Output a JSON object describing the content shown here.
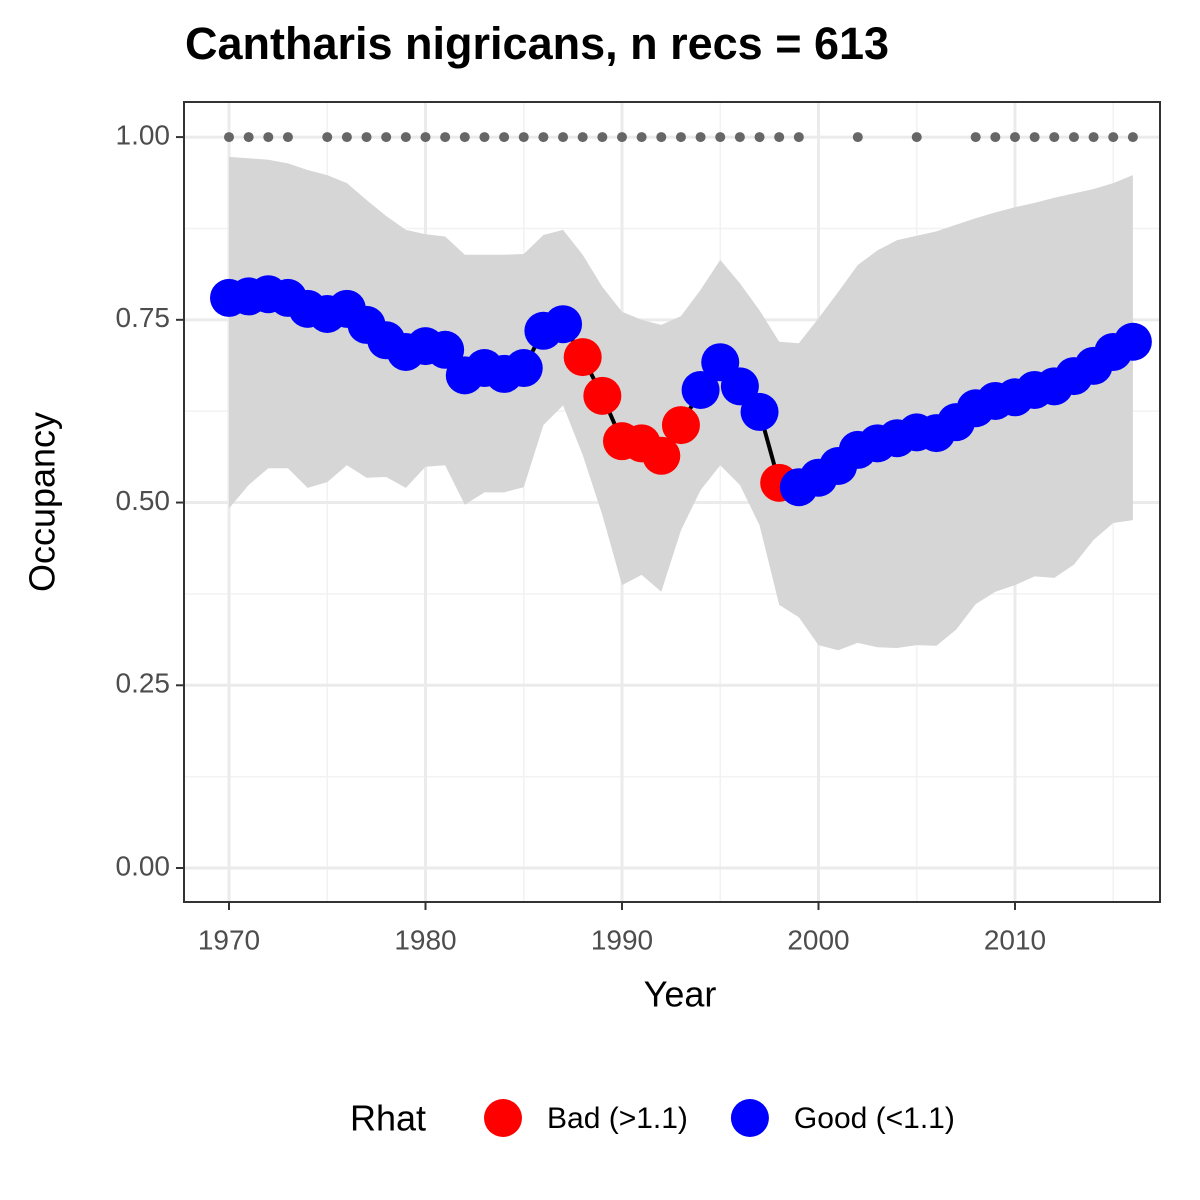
{
  "chart_data": {
    "type": "line",
    "title": "Cantharis nigricans, n recs = 613",
    "xlabel": "Year",
    "ylabel": "Occupancy",
    "legend_title": "Rhat",
    "groups": [
      {
        "name": "Bad (>1.1)",
        "color": "#ff0000"
      },
      {
        "name": "Good (<1.1)",
        "color": "#0000ff"
      }
    ],
    "x": [
      1970,
      1971,
      1972,
      1973,
      1974,
      1975,
      1976,
      1977,
      1978,
      1979,
      1980,
      1981,
      1982,
      1983,
      1984,
      1985,
      1986,
      1987,
      1988,
      1989,
      1990,
      1991,
      1992,
      1993,
      1994,
      1995,
      1996,
      1997,
      1998,
      1999,
      2000,
      2001,
      2002,
      2003,
      2004,
      2005,
      2006,
      2007,
      2008,
      2009,
      2010,
      2011,
      2012,
      2013,
      2014,
      2015,
      2016
    ],
    "values": [
      0.78,
      0.782,
      0.785,
      0.78,
      0.765,
      0.758,
      0.765,
      0.743,
      0.722,
      0.706,
      0.714,
      0.709,
      0.674,
      0.684,
      0.676,
      0.684,
      0.735,
      0.744,
      0.699,
      0.646,
      0.584,
      0.581,
      0.564,
      0.606,
      0.654,
      0.692,
      0.659,
      0.624,
      0.527,
      0.521,
      0.534,
      0.55,
      0.572,
      0.581,
      0.588,
      0.596,
      0.595,
      0.61,
      0.629,
      0.639,
      0.644,
      0.654,
      0.659,
      0.673,
      0.687,
      0.706,
      0.72
    ],
    "group": [
      1,
      1,
      1,
      1,
      1,
      1,
      1,
      1,
      1,
      1,
      1,
      1,
      1,
      1,
      1,
      1,
      1,
      1,
      0,
      0,
      0,
      0,
      0,
      0,
      1,
      1,
      1,
      1,
      0,
      1,
      1,
      1,
      1,
      1,
      1,
      1,
      1,
      1,
      1,
      1,
      1,
      1,
      1,
      1,
      1,
      1,
      1
    ],
    "upper": [
      0.973,
      0.971,
      0.969,
      0.964,
      0.955,
      0.948,
      0.937,
      0.914,
      0.892,
      0.873,
      0.867,
      0.864,
      0.839,
      0.839,
      0.839,
      0.84,
      0.866,
      0.873,
      0.839,
      0.795,
      0.761,
      0.75,
      0.743,
      0.755,
      0.791,
      0.832,
      0.8,
      0.763,
      0.72,
      0.718,
      0.752,
      0.788,
      0.825,
      0.845,
      0.859,
      0.865,
      0.871,
      0.88,
      0.889,
      0.897,
      0.904,
      0.91,
      0.917,
      0.923,
      0.929,
      0.937,
      0.948
    ],
    "lower": [
      0.492,
      0.524,
      0.547,
      0.547,
      0.52,
      0.528,
      0.551,
      0.534,
      0.535,
      0.52,
      0.549,
      0.551,
      0.497,
      0.514,
      0.514,
      0.521,
      0.606,
      0.633,
      0.565,
      0.483,
      0.387,
      0.401,
      0.378,
      0.462,
      0.517,
      0.551,
      0.524,
      0.469,
      0.36,
      0.343,
      0.305,
      0.298,
      0.308,
      0.302,
      0.301,
      0.305,
      0.304,
      0.326,
      0.361,
      0.378,
      0.387,
      0.399,
      0.397,
      0.415,
      0.449,
      0.472,
      0.476
    ],
    "records": {
      "x": [
        1970,
        1971,
        1972,
        1973,
        1975,
        1976,
        1977,
        1978,
        1979,
        1980,
        1981,
        1982,
        1983,
        1984,
        1985,
        1986,
        1987,
        1988,
        1989,
        1990,
        1991,
        1992,
        1993,
        1994,
        1995,
        1996,
        1997,
        1998,
        1999,
        2002,
        2005,
        2008,
        2009,
        2010,
        2011,
        2012,
        2013,
        2014,
        2015,
        2016
      ],
      "values": [
        1,
        1,
        1,
        1,
        1,
        1,
        1,
        1,
        1,
        1,
        1,
        1,
        1,
        1,
        1,
        1,
        1,
        1,
        1,
        1,
        1,
        1,
        1,
        1,
        1,
        1,
        1,
        1,
        1,
        1,
        1,
        1,
        1,
        1,
        1,
        1,
        1,
        1,
        1,
        1
      ],
      "color": "#666666"
    },
    "band_color": "#d6d6d6",
    "line_color": "#000000",
    "xlim": [
      1967.71,
      2017.38
    ],
    "xticks": [
      1970,
      1980,
      1990,
      2000,
      2010
    ],
    "ylim": [
      -0.0465,
      1.048
    ],
    "yticks": [
      {
        "value": 0,
        "label": "0.00"
      },
      {
        "value": 0.25,
        "label": "0.25"
      },
      {
        "value": 0.5,
        "label": "0.50"
      },
      {
        "value": 0.75,
        "label": "0.75"
      },
      {
        "value": 1,
        "label": "1.00"
      }
    ],
    "grid": true
  }
}
